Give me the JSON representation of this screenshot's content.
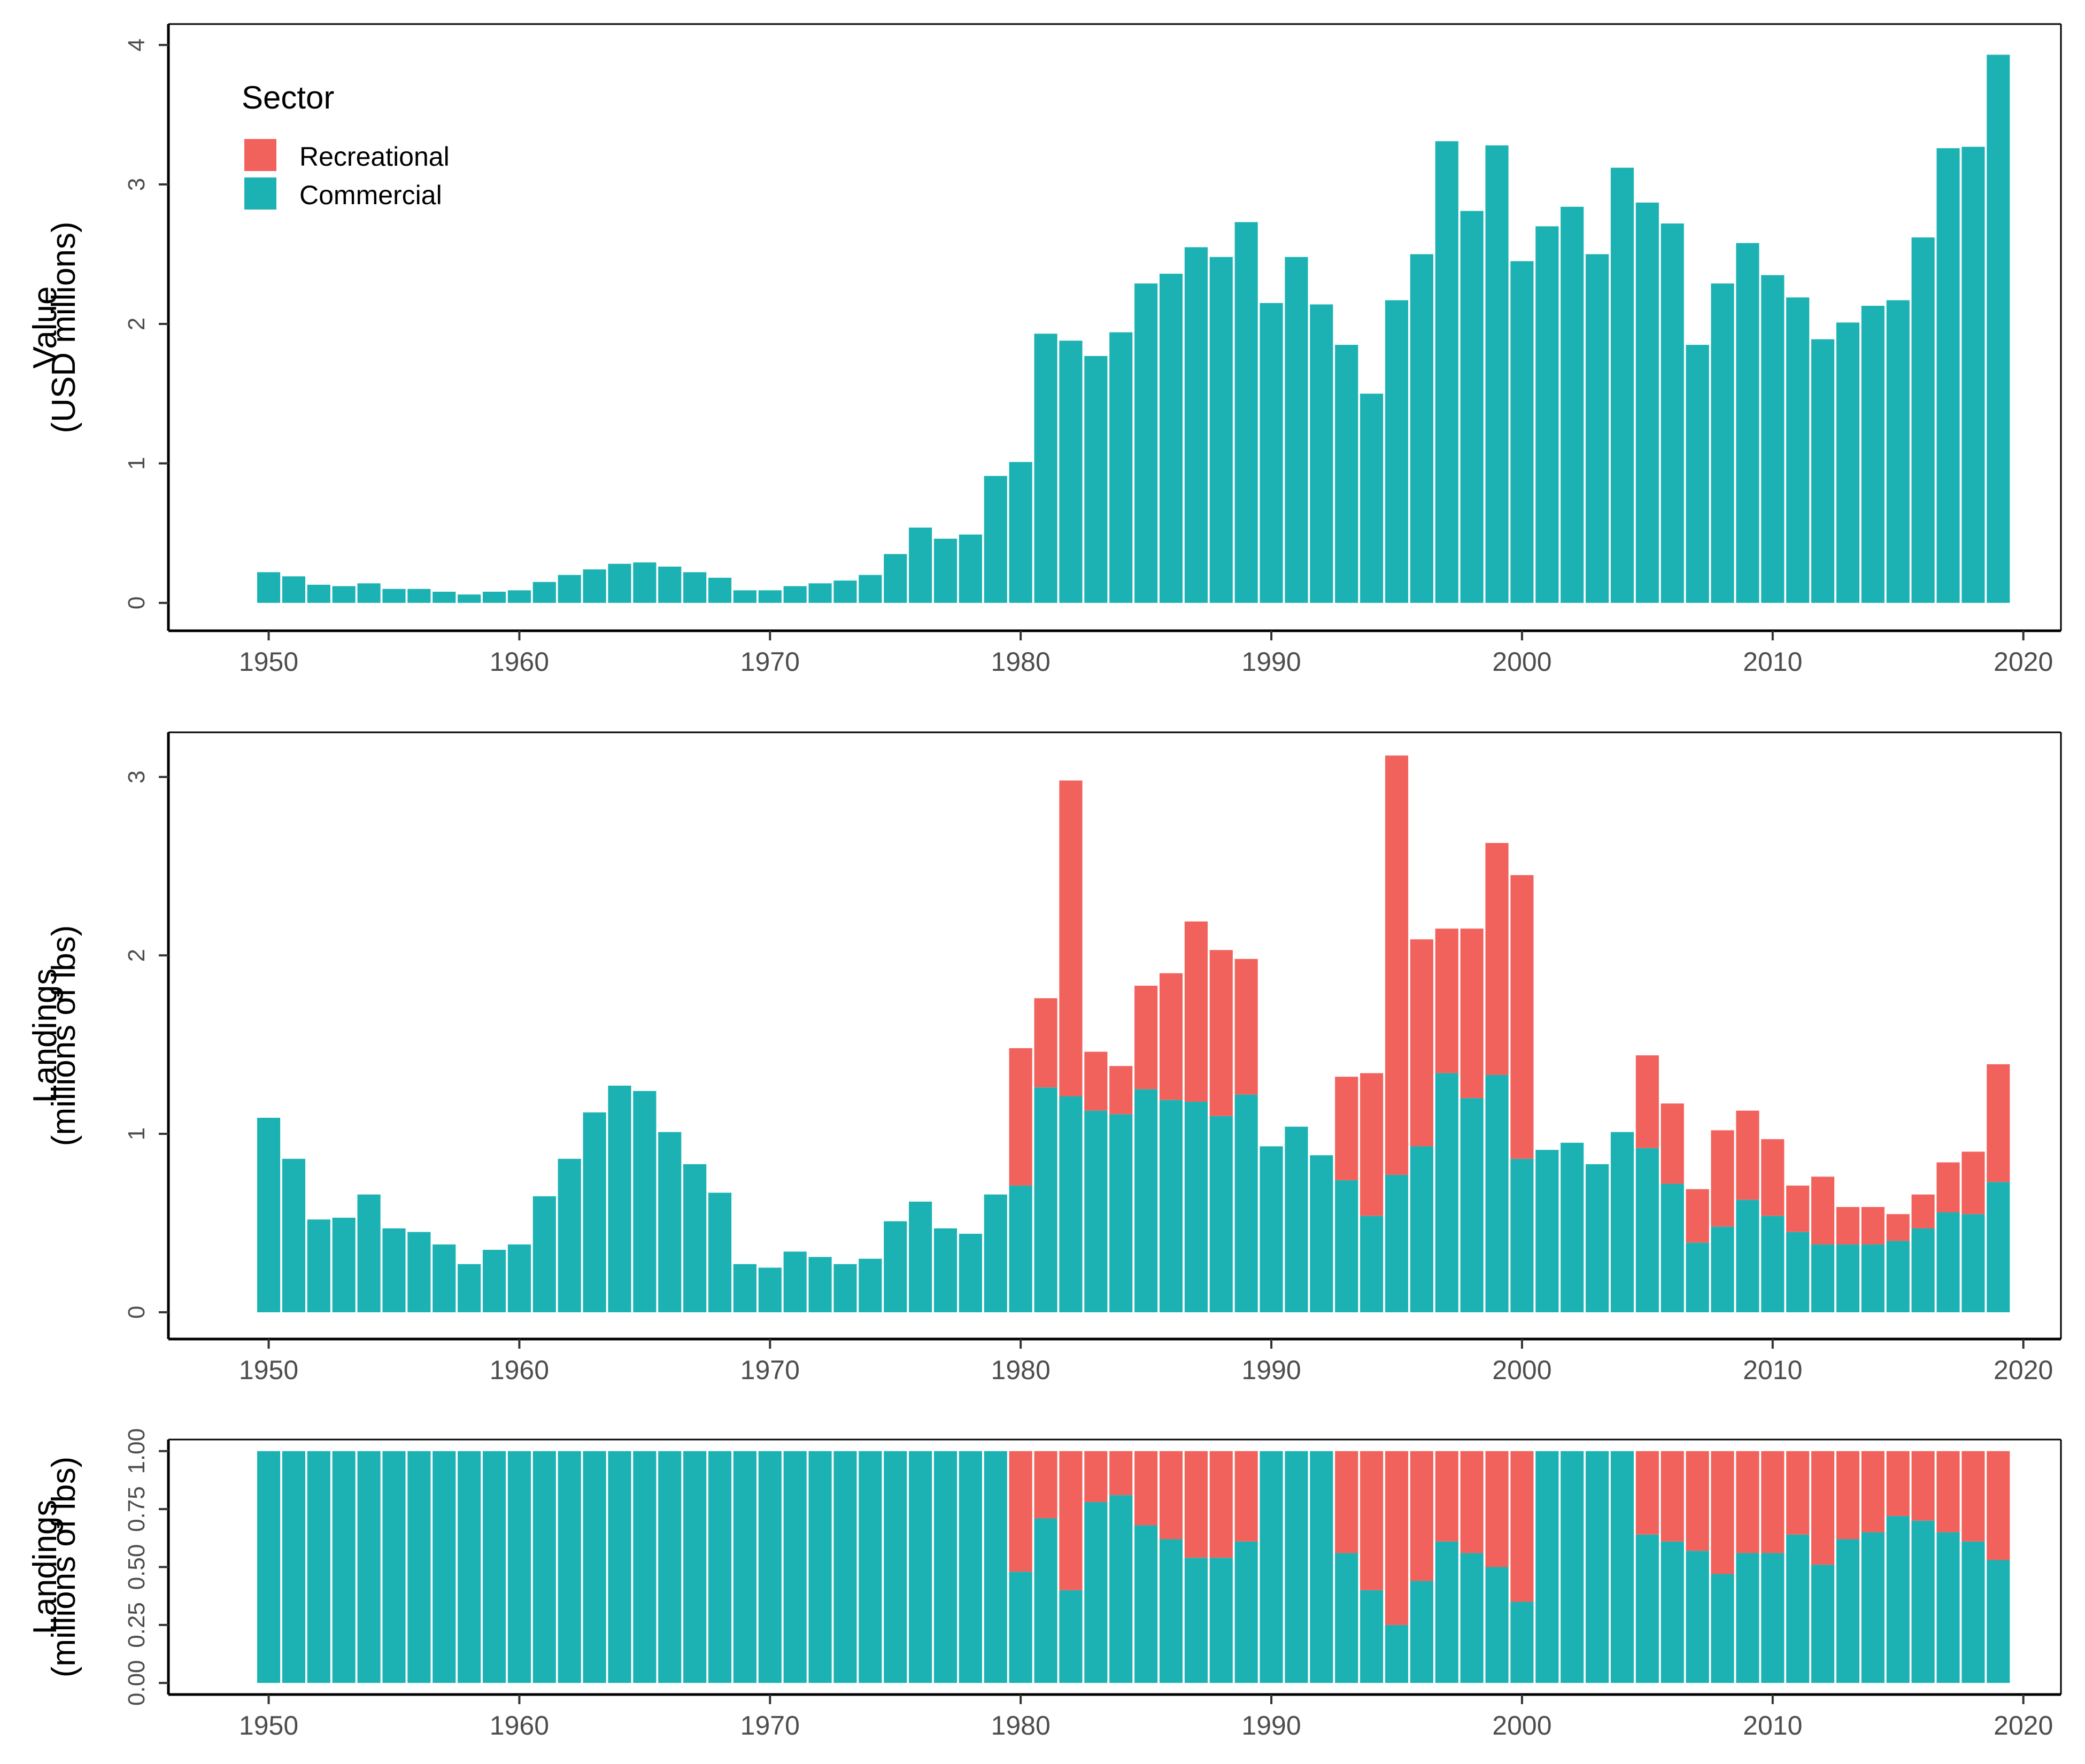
{
  "chart_data": [
    {
      "type": "bar",
      "stacked": true,
      "ylabel_lines": [
        "Value",
        "(USD millions)"
      ],
      "xlim": [
        1946,
        2021.5
      ],
      "ylim": [
        -0.2,
        4.15
      ],
      "xticks": [
        1950,
        1960,
        1970,
        1980,
        1990,
        2000,
        2010,
        2020
      ],
      "yticks": [
        0,
        1,
        2,
        3,
        4
      ],
      "ytick_labels": [
        "0",
        "1",
        "2",
        "3",
        "4"
      ],
      "series": [
        {
          "name": "Recreational",
          "color": "#F2625C",
          "values": [
            0,
            0,
            0,
            0,
            0,
            0,
            0,
            0,
            0,
            0,
            0,
            0,
            0,
            0,
            0,
            0,
            0,
            0,
            0,
            0,
            0,
            0,
            0,
            0,
            0,
            0,
            0,
            0,
            0,
            0,
            0,
            0,
            0,
            0,
            0,
            0,
            0,
            0,
            0,
            0,
            0,
            0,
            0,
            0,
            0,
            0,
            0,
            0,
            0,
            0,
            0,
            0,
            0,
            0,
            0,
            0,
            0,
            0,
            0,
            0,
            0,
            0,
            0,
            0,
            0,
            0,
            0,
            0,
            0,
            0
          ]
        },
        {
          "name": "Commercial",
          "color": "#1CB2B3",
          "values": [
            0.22,
            0.19,
            0.13,
            0.12,
            0.14,
            0.1,
            0.1,
            0.08,
            0.06,
            0.08,
            0.09,
            0.15,
            0.2,
            0.24,
            0.28,
            0.29,
            0.26,
            0.22,
            0.18,
            0.09,
            0.09,
            0.12,
            0.14,
            0.16,
            0.2,
            0.35,
            0.54,
            0.46,
            0.49,
            0.91,
            1.01,
            1.93,
            1.88,
            1.77,
            1.94,
            2.29,
            2.36,
            2.55,
            2.48,
            2.73,
            2.15,
            2.48,
            2.14,
            1.85,
            1.5,
            2.17,
            2.5,
            3.31,
            2.81,
            3.28,
            2.45,
            2.7,
            2.84,
            2.5,
            3.12,
            2.87,
            2.72,
            1.85,
            2.29,
            2.58,
            2.35,
            2.19,
            1.89,
            2.01,
            2.13,
            2.17,
            2.62,
            3.26,
            3.27,
            3.93
          ]
        }
      ]
    },
    {
      "type": "bar",
      "stacked": true,
      "ylabel_lines": [
        "Landings",
        "(millions of lbs)"
      ],
      "xlim": [
        1946,
        2021.5
      ],
      "ylim": [
        -0.15,
        3.25
      ],
      "xticks": [
        1950,
        1960,
        1970,
        1980,
        1990,
        2000,
        2010,
        2020
      ],
      "yticks": [
        0,
        1,
        2,
        3
      ],
      "ytick_labels": [
        "0",
        "1",
        "2",
        "3"
      ],
      "series": [
        {
          "name": "Recreational",
          "color": "#F2625C",
          "values": [
            0,
            0,
            0,
            0,
            0,
            0,
            0,
            0,
            0,
            0,
            0,
            0,
            0,
            0,
            0,
            0,
            0,
            0,
            0,
            0,
            0,
            0,
            0,
            0,
            0,
            0,
            0,
            0,
            0,
            0,
            0.77,
            0.5,
            1.77,
            0.33,
            0.27,
            0.58,
            0.71,
            1.01,
            0.93,
            0.76,
            0,
            0,
            0,
            0.58,
            0.8,
            2.35,
            1.16,
            0.81,
            0.95,
            1.3,
            1.59,
            0,
            0,
            0,
            0,
            0.52,
            0.45,
            0.3,
            0.54,
            0.5,
            0.43,
            0.26,
            0.38,
            0.21,
            0.21,
            0.15,
            0.19,
            0.28,
            0.35,
            0.66
          ]
        },
        {
          "name": "Commercial",
          "color": "#1CB2B3",
          "values": [
            1.09,
            0.86,
            0.52,
            0.53,
            0.66,
            0.47,
            0.45,
            0.38,
            0.27,
            0.35,
            0.38,
            0.65,
            0.86,
            1.12,
            1.27,
            1.24,
            1.01,
            0.83,
            0.67,
            0.27,
            0.25,
            0.34,
            0.31,
            0.27,
            0.3,
            0.51,
            0.62,
            0.47,
            0.44,
            0.66,
            0.71,
            1.26,
            1.21,
            1.13,
            1.11,
            1.25,
            1.19,
            1.18,
            1.1,
            1.22,
            0.93,
            1.04,
            0.88,
            0.74,
            0.54,
            0.77,
            0.93,
            1.34,
            1.2,
            1.33,
            0.86,
            0.91,
            0.95,
            0.83,
            1.01,
            0.92,
            0.72,
            0.39,
            0.48,
            0.63,
            0.54,
            0.45,
            0.38,
            0.38,
            0.38,
            0.4,
            0.47,
            0.56,
            0.55,
            0.73
          ]
        }
      ]
    },
    {
      "type": "bar",
      "stacked": true,
      "ylabel_lines": [
        "Landings",
        "(millions of lbs)"
      ],
      "xlim": [
        1946,
        2021.5
      ],
      "ylim": [
        -0.05,
        1.05
      ],
      "xticks": [
        1950,
        1960,
        1970,
        1980,
        1990,
        2000,
        2010,
        2020
      ],
      "yticks": [
        0,
        0.25,
        0.5,
        0.75,
        1.0
      ],
      "ytick_labels": [
        "0.00",
        "0.25",
        "0.50",
        "0.75",
        "1.00"
      ],
      "series": [
        {
          "name": "Recreational",
          "color": "#F2625C",
          "values": [
            0,
            0,
            0,
            0,
            0,
            0,
            0,
            0,
            0,
            0,
            0,
            0,
            0,
            0,
            0,
            0,
            0,
            0,
            0,
            0,
            0,
            0,
            0,
            0,
            0,
            0,
            0,
            0,
            0,
            0,
            0.52,
            0.29,
            0.6,
            0.22,
            0.19,
            0.32,
            0.38,
            0.46,
            0.46,
            0.39,
            0,
            0,
            0,
            0.44,
            0.6,
            0.75,
            0.56,
            0.39,
            0.44,
            0.5,
            0.65,
            0,
            0,
            0,
            0,
            0.36,
            0.39,
            0.43,
            0.53,
            0.44,
            0.44,
            0.36,
            0.49,
            0.38,
            0.35,
            0.28,
            0.3,
            0.35,
            0.39,
            0.47
          ]
        },
        {
          "name": "Commercial",
          "color": "#1CB2B3",
          "values": [
            1,
            1,
            1,
            1,
            1,
            1,
            1,
            1,
            1,
            1,
            1,
            1,
            1,
            1,
            1,
            1,
            1,
            1,
            1,
            1,
            1,
            1,
            1,
            1,
            1,
            1,
            1,
            1,
            1,
            1,
            0.48,
            0.71,
            0.4,
            0.78,
            0.81,
            0.68,
            0.62,
            0.54,
            0.54,
            0.61,
            1,
            1,
            1,
            0.56,
            0.4,
            0.25,
            0.44,
            0.61,
            0.56,
            0.5,
            0.35,
            1,
            1,
            1,
            1,
            0.64,
            0.61,
            0.57,
            0.47,
            0.56,
            0.56,
            0.64,
            0.51,
            0.62,
            0.65,
            0.72,
            0.7,
            0.65,
            0.61,
            0.53
          ]
        }
      ]
    }
  ],
  "years": [
    1950,
    1951,
    1952,
    1953,
    1954,
    1955,
    1956,
    1957,
    1958,
    1959,
    1960,
    1961,
    1962,
    1963,
    1964,
    1965,
    1966,
    1967,
    1968,
    1969,
    1970,
    1971,
    1972,
    1973,
    1974,
    1975,
    1976,
    1977,
    1978,
    1979,
    1980,
    1981,
    1982,
    1983,
    1984,
    1985,
    1986,
    1987,
    1988,
    1989,
    1990,
    1991,
    1992,
    1993,
    1994,
    1995,
    1996,
    1997,
    1998,
    1999,
    2000,
    2001,
    2002,
    2003,
    2004,
    2005,
    2006,
    2007,
    2008,
    2009,
    2010,
    2011,
    2012,
    2013,
    2014,
    2015,
    2016,
    2017,
    2018,
    2019
  ],
  "legend": {
    "title": "Sector",
    "items": [
      {
        "label": "Recreational",
        "color": "#F2625C"
      },
      {
        "label": "Commercial",
        "color": "#1CB2B3"
      }
    ]
  }
}
